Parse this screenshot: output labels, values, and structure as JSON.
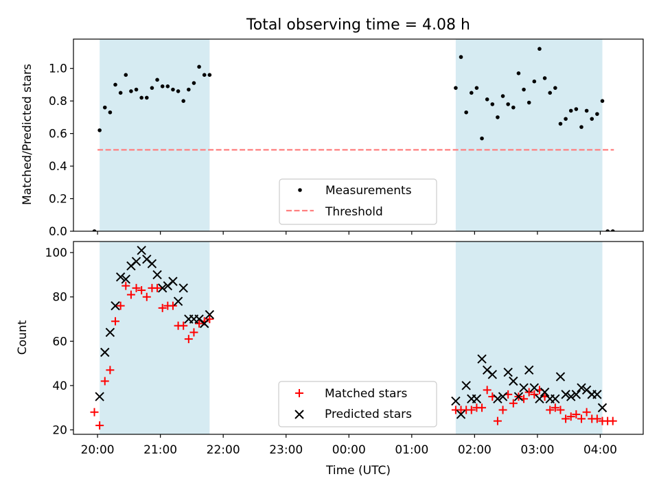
{
  "chart_data": [
    {
      "type": "scatter",
      "title": "Total observing time = 4.08 h",
      "xlabel": "",
      "ylabel": "Matched/Predicted stars",
      "xlim": [
        "19:37",
        "04:41"
      ],
      "ylim": [
        0,
        1.18
      ],
      "yticks": [
        0.0,
        0.2,
        0.4,
        0.6,
        0.8,
        1.0
      ],
      "ytick_labels": [
        "0.0",
        "0.2",
        "0.4",
        "0.6",
        "0.8",
        "1.0"
      ],
      "shaded_intervals": [
        [
          "20:02",
          "21:47"
        ],
        [
          "01:42",
          "04:02"
        ]
      ],
      "threshold": {
        "name": "Threshold",
        "value": 0.5,
        "x_range": [
          "20:00",
          "04:13"
        ],
        "color": "#ff7f7f"
      },
      "legend": {
        "location": "lower-center",
        "entries": [
          "Measurements",
          "Threshold"
        ]
      },
      "series": [
        {
          "name": "Measurements",
          "marker": "dot",
          "color": "#000000",
          "points": [
            [
              "19:57",
              0.0
            ],
            [
              "20:02",
              0.62
            ],
            [
              "20:07",
              0.76
            ],
            [
              "20:12",
              0.73
            ],
            [
              "20:17",
              0.9
            ],
            [
              "20:22",
              0.85
            ],
            [
              "20:27",
              0.96
            ],
            [
              "20:32",
              0.86
            ],
            [
              "20:37",
              0.87
            ],
            [
              "20:42",
              0.82
            ],
            [
              "20:47",
              0.82
            ],
            [
              "20:52",
              0.88
            ],
            [
              "20:57",
              0.93
            ],
            [
              "21:02",
              0.89
            ],
            [
              "21:07",
              0.89
            ],
            [
              "21:12",
              0.87
            ],
            [
              "21:17",
              0.86
            ],
            [
              "21:22",
              0.8
            ],
            [
              "21:27",
              0.87
            ],
            [
              "21:32",
              0.91
            ],
            [
              "21:37",
              1.01
            ],
            [
              "21:42",
              0.96
            ],
            [
              "21:47",
              0.96
            ],
            [
              "01:42",
              0.88
            ],
            [
              "01:47",
              1.07
            ],
            [
              "01:52",
              0.73
            ],
            [
              "01:57",
              0.85
            ],
            [
              "02:02",
              0.88
            ],
            [
              "02:07",
              0.57
            ],
            [
              "02:12",
              0.81
            ],
            [
              "02:17",
              0.78
            ],
            [
              "02:22",
              0.7
            ],
            [
              "02:27",
              0.83
            ],
            [
              "02:32",
              0.78
            ],
            [
              "02:37",
              0.76
            ],
            [
              "02:42",
              0.97
            ],
            [
              "02:47",
              0.87
            ],
            [
              "02:52",
              0.79
            ],
            [
              "02:57",
              0.92
            ],
            [
              "03:02",
              1.12
            ],
            [
              "03:07",
              0.94
            ],
            [
              "03:12",
              0.85
            ],
            [
              "03:17",
              0.88
            ],
            [
              "03:22",
              0.66
            ],
            [
              "03:27",
              0.69
            ],
            [
              "03:32",
              0.74
            ],
            [
              "03:37",
              0.75
            ],
            [
              "03:42",
              0.64
            ],
            [
              "03:47",
              0.74
            ],
            [
              "03:52",
              0.69
            ],
            [
              "03:57",
              0.72
            ],
            [
              "04:02",
              0.8
            ],
            [
              "04:07",
              0.0
            ],
            [
              "04:12",
              0.0
            ]
          ]
        }
      ]
    },
    {
      "type": "scatter",
      "title": "",
      "xlabel": "Time (UTC)",
      "ylabel": "Count",
      "xlim": [
        "19:37",
        "04:41"
      ],
      "ylim": [
        18,
        105
      ],
      "yticks": [
        20,
        40,
        60,
        80,
        100
      ],
      "ytick_labels": [
        "20",
        "40",
        "60",
        "80",
        "100"
      ],
      "xticks": [
        "20:00",
        "21:00",
        "22:00",
        "23:00",
        "00:00",
        "01:00",
        "02:00",
        "03:00",
        "04:00"
      ],
      "shaded_intervals": [
        [
          "20:02",
          "21:47"
        ],
        [
          "01:42",
          "04:02"
        ]
      ],
      "legend": {
        "location": "lower-center",
        "entries": [
          "Matched stars",
          "Predicted stars"
        ]
      },
      "series": [
        {
          "name": "Matched stars",
          "marker": "plus",
          "color": "#ff0000",
          "points": [
            [
              "19:57",
              28
            ],
            [
              "20:02",
              22
            ],
            [
              "20:07",
              42
            ],
            [
              "20:12",
              47
            ],
            [
              "20:17",
              69
            ],
            [
              "20:22",
              76
            ],
            [
              "20:27",
              85
            ],
            [
              "20:32",
              81
            ],
            [
              "20:37",
              84
            ],
            [
              "20:42",
              83
            ],
            [
              "20:47",
              80
            ],
            [
              "20:52",
              84
            ],
            [
              "20:57",
              84
            ],
            [
              "21:02",
              75
            ],
            [
              "21:07",
              76
            ],
            [
              "21:12",
              76
            ],
            [
              "21:17",
              67
            ],
            [
              "21:22",
              67
            ],
            [
              "21:27",
              61
            ],
            [
              "21:32",
              64
            ],
            [
              "21:37",
              68
            ],
            [
              "21:42",
              69
            ],
            [
              "21:47",
              70
            ],
            [
              "01:42",
              29
            ],
            [
              "01:47",
              29
            ],
            [
              "01:52",
              29
            ],
            [
              "01:57",
              29
            ],
            [
              "02:02",
              30
            ],
            [
              "02:07",
              30
            ],
            [
              "02:12",
              38
            ],
            [
              "02:17",
              35
            ],
            [
              "02:22",
              24
            ],
            [
              "02:27",
              29
            ],
            [
              "02:32",
              36
            ],
            [
              "02:37",
              32
            ],
            [
              "02:42",
              35
            ],
            [
              "02:47",
              34
            ],
            [
              "02:52",
              37
            ],
            [
              "02:57",
              36
            ],
            [
              "03:02",
              38
            ],
            [
              "03:07",
              35
            ],
            [
              "03:12",
              29
            ],
            [
              "03:17",
              30
            ],
            [
              "03:22",
              29
            ],
            [
              "03:27",
              25
            ],
            [
              "03:32",
              26
            ],
            [
              "03:37",
              27
            ],
            [
              "03:42",
              25
            ],
            [
              "03:47",
              28
            ],
            [
              "03:52",
              25
            ],
            [
              "03:57",
              25
            ],
            [
              "04:02",
              24
            ],
            [
              "04:07",
              24
            ],
            [
              "04:12",
              24
            ]
          ]
        },
        {
          "name": "Predicted stars",
          "marker": "x",
          "color": "#000000",
          "points": [
            [
              "20:02",
              35
            ],
            [
              "20:07",
              55
            ],
            [
              "20:12",
              64
            ],
            [
              "20:17",
              76
            ],
            [
              "20:22",
              89
            ],
            [
              "20:27",
              88
            ],
            [
              "20:32",
              94
            ],
            [
              "20:37",
              96
            ],
            [
              "20:42",
              101
            ],
            [
              "20:47",
              97
            ],
            [
              "20:52",
              95
            ],
            [
              "20:57",
              90
            ],
            [
              "21:02",
              84
            ],
            [
              "21:07",
              85
            ],
            [
              "21:12",
              87
            ],
            [
              "21:17",
              78
            ],
            [
              "21:22",
              84
            ],
            [
              "21:27",
              70
            ],
            [
              "21:32",
              70
            ],
            [
              "21:37",
              70
            ],
            [
              "21:42",
              68
            ],
            [
              "21:47",
              72
            ],
            [
              "01:42",
              33
            ],
            [
              "01:47",
              27
            ],
            [
              "01:52",
              40
            ],
            [
              "01:57",
              34
            ],
            [
              "02:02",
              34
            ],
            [
              "02:07",
              52
            ],
            [
              "02:12",
              47
            ],
            [
              "02:17",
              45
            ],
            [
              "02:22",
              34
            ],
            [
              "02:27",
              35
            ],
            [
              "02:32",
              46
            ],
            [
              "02:37",
              42
            ],
            [
              "02:42",
              35
            ],
            [
              "02:47",
              39
            ],
            [
              "02:52",
              47
            ],
            [
              "02:57",
              39
            ],
            [
              "03:02",
              34
            ],
            [
              "03:07",
              37
            ],
            [
              "03:12",
              34
            ],
            [
              "03:17",
              34
            ],
            [
              "03:22",
              44
            ],
            [
              "03:27",
              36
            ],
            [
              "03:32",
              35
            ],
            [
              "03:37",
              36
            ],
            [
              "03:42",
              39
            ],
            [
              "03:47",
              38
            ],
            [
              "03:52",
              36
            ],
            [
              "03:57",
              36
            ],
            [
              "04:02",
              30
            ]
          ]
        }
      ]
    }
  ]
}
